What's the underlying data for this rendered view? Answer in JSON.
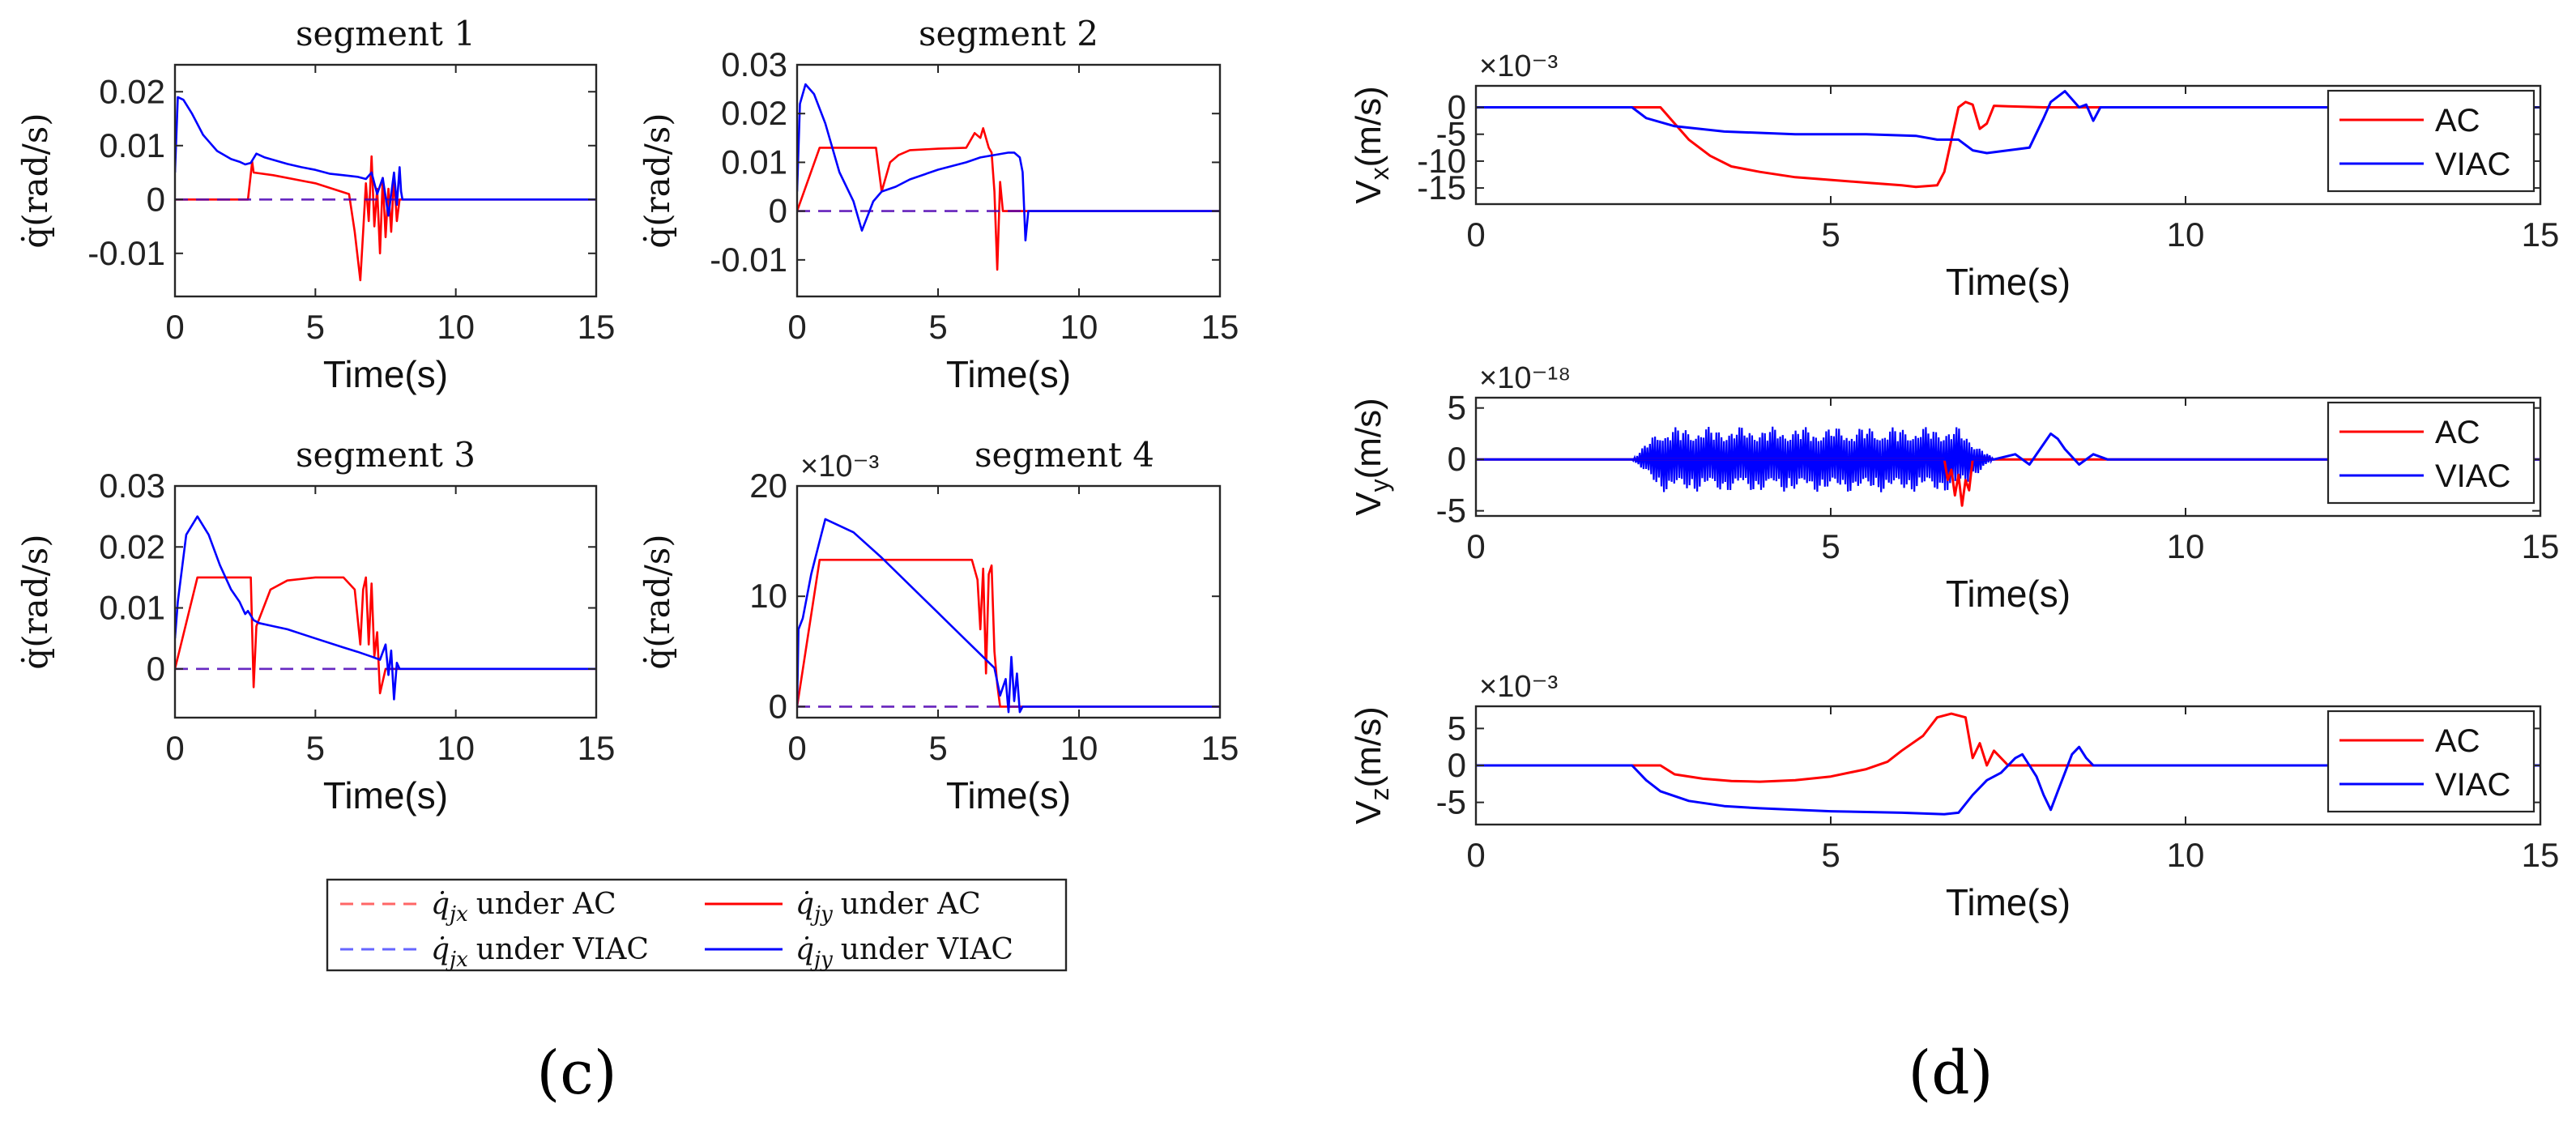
{
  "panel_labels": {
    "c": "(c)",
    "d": "(d)"
  },
  "legend_c": {
    "items": [
      {
        "name": "qjx-ac",
        "symbol": "q̇",
        "sub": "jx",
        "text": "under AC",
        "color": "#ff0000",
        "dash": true
      },
      {
        "name": "qjy-ac",
        "symbol": "q̇",
        "sub": "jy",
        "text": "under AC",
        "color": "#ff0000",
        "dash": false
      },
      {
        "name": "qjx-viac",
        "symbol": "q̇",
        "sub": "jx",
        "text": "under VIAC",
        "color": "#0000ff",
        "dash": true
      },
      {
        "name": "qjy-viac",
        "symbol": "q̇",
        "sub": "jy",
        "text": "under VIAC",
        "color": "#0000ff",
        "dash": false
      }
    ]
  },
  "colors": {
    "ac": "#ff0000",
    "viac": "#0000ff",
    "axis": "#262626"
  },
  "chart_data": [
    {
      "id": "seg1",
      "type": "line",
      "title": "segment 1",
      "xlabel": "Time(s)",
      "ylabel": "q̇(rad/s)",
      "exponent": "",
      "xlim": [
        0,
        15
      ],
      "ylim": [
        -0.018,
        0.025
      ],
      "xticks": [
        0,
        5,
        10,
        15
      ],
      "xticklabels": [
        "0",
        "5",
        "10",
        "15"
      ],
      "yticks": [
        -0.01,
        0,
        0.01,
        0.02
      ],
      "yticklabels": [
        "-0.01",
        "0",
        "0.01",
        "0.02"
      ],
      "series": [
        {
          "name": "q̇jx under AC",
          "color": "#ff0000",
          "dash": true,
          "x": [
            0,
            8.0
          ],
          "y": [
            0,
            0
          ]
        },
        {
          "name": "q̇jy under AC",
          "color": "#ff0000",
          "dash": false,
          "x": [
            0,
            2.6,
            2.75,
            2.8,
            3.5,
            5.0,
            6.2,
            6.4,
            6.6,
            6.7,
            6.8,
            6.9,
            7.0,
            7.1,
            7.2,
            7.3,
            7.4,
            7.5,
            7.6,
            7.7,
            7.8,
            7.9,
            8.0,
            15
          ],
          "y": [
            0,
            0,
            0.007,
            0.005,
            0.0045,
            0.003,
            0.001,
            -0.006,
            -0.015,
            -0.006,
            0.003,
            -0.004,
            0.008,
            -0.005,
            0.002,
            -0.01,
            0.004,
            -0.007,
            0.002,
            -0.006,
            0.004,
            -0.004,
            0,
            0
          ]
        },
        {
          "name": "q̇jx under VIAC",
          "color": "#0000ff",
          "dash": true,
          "x": [
            0,
            8.2
          ],
          "y": [
            0,
            0
          ]
        },
        {
          "name": "q̇jy under VIAC",
          "color": "#0000ff",
          "dash": false,
          "x": [
            0,
            0.1,
            0.3,
            0.6,
            1.0,
            1.5,
            2.0,
            2.3,
            2.5,
            2.7,
            2.9,
            3.2,
            3.6,
            4.0,
            4.5,
            5.0,
            5.5,
            6.0,
            6.5,
            6.8,
            7.0,
            7.2,
            7.4,
            7.6,
            7.8,
            7.9,
            8.0,
            8.05,
            8.1,
            15
          ],
          "y": [
            0.005,
            0.019,
            0.0185,
            0.016,
            0.012,
            0.009,
            0.0075,
            0.007,
            0.0065,
            0.0068,
            0.0085,
            0.0078,
            0.0072,
            0.0066,
            0.006,
            0.0055,
            0.0048,
            0.0045,
            0.0042,
            0.0038,
            0.005,
            0.001,
            0.004,
            -0.003,
            0.005,
            -0.001,
            0.006,
            0.0015,
            0,
            0
          ]
        }
      ]
    },
    {
      "id": "seg2",
      "type": "line",
      "title": "segment 2",
      "xlabel": "Time(s)",
      "ylabel": "q̇(rad/s)",
      "exponent": "",
      "xlim": [
        0,
        15
      ],
      "ylim": [
        -0.0175,
        0.03
      ],
      "xticks": [
        0,
        5,
        10,
        15
      ],
      "xticklabels": [
        "0",
        "5",
        "10",
        "15"
      ],
      "yticks": [
        -0.01,
        0,
        0.01,
        0.02,
        0.03
      ],
      "yticklabels": [
        "-0.01",
        "0",
        "0.01",
        "0.02",
        "0.03"
      ],
      "series": [
        {
          "name": "q̇jx under AC",
          "color": "#ff0000",
          "dash": true,
          "x": [
            0,
            8.0
          ],
          "y": [
            0,
            0
          ]
        },
        {
          "name": "q̇jy under AC",
          "color": "#ff0000",
          "dash": false,
          "x": [
            0,
            0.8,
            2.8,
            3.0,
            3.3,
            3.6,
            4.0,
            5.0,
            6.0,
            6.3,
            6.5,
            6.6,
            6.8,
            6.9,
            7.0,
            7.1,
            7.2,
            7.3,
            7.5,
            15
          ],
          "y": [
            0,
            0.013,
            0.013,
            0.004,
            0.01,
            0.0115,
            0.0125,
            0.0128,
            0.013,
            0.016,
            0.015,
            0.017,
            0.013,
            0.012,
            0.004,
            -0.012,
            0.006,
            0,
            0,
            0
          ]
        },
        {
          "name": "q̇jx under VIAC",
          "color": "#0000ff",
          "dash": true,
          "x": [
            0,
            8.2
          ],
          "y": [
            0,
            0
          ]
        },
        {
          "name": "q̇jy under VIAC",
          "color": "#0000ff",
          "dash": false,
          "x": [
            0,
            0.1,
            0.3,
            0.6,
            1.0,
            1.5,
            2.0,
            2.3,
            2.5,
            2.7,
            3.0,
            3.5,
            4.0,
            5.0,
            6.0,
            6.5,
            7.0,
            7.5,
            7.7,
            7.9,
            8.0,
            8.1,
            8.2,
            15
          ],
          "y": [
            0.004,
            0.022,
            0.026,
            0.024,
            0.018,
            0.008,
            0.002,
            -0.004,
            -0.001,
            0.002,
            0.004,
            0.005,
            0.0065,
            0.0085,
            0.01,
            0.011,
            0.0115,
            0.012,
            0.012,
            0.011,
            0.008,
            -0.006,
            0,
            0
          ]
        }
      ]
    },
    {
      "id": "seg3",
      "type": "line",
      "title": "segment 3",
      "xlabel": "Time(s)",
      "ylabel": "q̇(rad/s)",
      "exponent": "",
      "xlim": [
        0,
        15
      ],
      "ylim": [
        -0.008,
        0.03
      ],
      "xticks": [
        0,
        5,
        10,
        15
      ],
      "xticklabels": [
        "0",
        "5",
        "10",
        "15"
      ],
      "yticks": [
        0,
        0.01,
        0.02,
        0.03
      ],
      "yticklabels": [
        "0",
        "0.01",
        "0.02",
        "0.03"
      ],
      "series": [
        {
          "name": "q̇jx under AC",
          "color": "#ff0000",
          "dash": true,
          "x": [
            0,
            8.0
          ],
          "y": [
            0,
            0
          ]
        },
        {
          "name": "q̇jy under AC",
          "color": "#ff0000",
          "dash": false,
          "x": [
            0,
            0.8,
            2.7,
            2.8,
            2.9,
            3.4,
            4.0,
            5.0,
            6.0,
            6.4,
            6.6,
            6.7,
            6.8,
            6.9,
            7.0,
            7.1,
            7.2,
            7.3,
            7.5,
            15
          ],
          "y": [
            0,
            0.015,
            0.015,
            -0.003,
            0.007,
            0.013,
            0.0145,
            0.015,
            0.015,
            0.013,
            0.004,
            0.013,
            0.015,
            0.004,
            0.014,
            0.002,
            0.006,
            -0.004,
            0,
            0
          ]
        },
        {
          "name": "q̇jx under VIAC",
          "color": "#0000ff",
          "dash": true,
          "x": [
            0,
            8.2
          ],
          "y": [
            0,
            0
          ]
        },
        {
          "name": "q̇jy under VIAC",
          "color": "#0000ff",
          "dash": false,
          "x": [
            0,
            0.1,
            0.4,
            0.8,
            1.2,
            1.6,
            2.0,
            2.3,
            2.5,
            2.6,
            2.8,
            3.0,
            3.5,
            4.0,
            5.0,
            6.0,
            6.5,
            7.0,
            7.3,
            7.5,
            7.6,
            7.7,
            7.8,
            7.9,
            8.0,
            15
          ],
          "y": [
            0.005,
            0.011,
            0.022,
            0.025,
            0.022,
            0.017,
            0.013,
            0.011,
            0.009,
            0.0095,
            0.008,
            0.0075,
            0.007,
            0.0065,
            0.005,
            0.0035,
            0.0028,
            0.002,
            0.0015,
            0.004,
            -0.001,
            0.003,
            -0.005,
            0.001,
            0,
            0
          ]
        }
      ]
    },
    {
      "id": "seg4",
      "type": "line",
      "title": "segment 4",
      "xlabel": "Time(s)",
      "ylabel": "q̇(rad/s)",
      "exponent": "×10⁻³",
      "xlim": [
        0,
        15
      ],
      "ylim": [
        -1,
        20
      ],
      "xticks": [
        0,
        5,
        10,
        15
      ],
      "xticklabels": [
        "0",
        "5",
        "10",
        "15"
      ],
      "yticks": [
        0,
        10,
        20
      ],
      "yticklabels": [
        "0",
        "10",
        "20"
      ],
      "series": [
        {
          "name": "q̇jx under AC",
          "color": "#ff0000",
          "dash": true,
          "x": [
            0,
            8.0
          ],
          "y": [
            0,
            0
          ]
        },
        {
          "name": "q̇jy under AC",
          "color": "#ff0000",
          "dash": false,
          "x": [
            0,
            0.8,
            3.0,
            5.0,
            6.2,
            6.4,
            6.5,
            6.6,
            6.7,
            6.8,
            6.9,
            7.0,
            7.1,
            7.2,
            15
          ],
          "y": [
            0,
            13.3,
            13.3,
            13.3,
            13.3,
            11.5,
            7.0,
            12.5,
            3.0,
            12.0,
            12.8,
            5.0,
            2.0,
            0,
            0
          ]
        },
        {
          "name": "q̇jx under VIAC",
          "color": "#0000ff",
          "dash": true,
          "x": [
            0,
            8.2
          ],
          "y": [
            0,
            0
          ]
        },
        {
          "name": "q̇jy under VIAC",
          "color": "#0000ff",
          "dash": false,
          "x": [
            0,
            0.05,
            0.2,
            0.5,
            0.8,
            1.0,
            2.0,
            3.0,
            4.0,
            5.0,
            6.0,
            7.0,
            7.2,
            7.4,
            7.5,
            7.6,
            7.7,
            7.8,
            7.9,
            8.0,
            15
          ],
          "y": [
            0,
            7.0,
            8.0,
            12.0,
            15.0,
            17.0,
            15.8,
            13.5,
            11.0,
            8.5,
            6.0,
            3.5,
            1.0,
            2.5,
            -0.5,
            4.5,
            0.5,
            3.0,
            -0.5,
            0,
            0
          ]
        }
      ]
    },
    {
      "id": "vx",
      "type": "line",
      "title": "",
      "xlabel": "Time(s)",
      "ylabel": "Vx(m/s)",
      "ylabel_main": "V",
      "ylabel_sub": "x",
      "ylabel_unit": "(m/s)",
      "exponent": "×10⁻³",
      "xlim": [
        0,
        15
      ],
      "ylim": [
        -18,
        4
      ],
      "xticks": [
        0,
        5,
        10,
        15
      ],
      "xticklabels": [
        "0",
        "5",
        "10",
        "15"
      ],
      "yticks": [
        -15,
        -10,
        -5,
        0
      ],
      "yticklabels": [
        "-15",
        "-10",
        "-5",
        "0"
      ],
      "legend": [
        "AC",
        "VIAC"
      ],
      "series": [
        {
          "name": "AC",
          "color": "#ff0000",
          "x": [
            0,
            2.6,
            2.8,
            3.0,
            3.3,
            3.6,
            4.0,
            4.5,
            5.0,
            5.5,
            6.0,
            6.2,
            6.5,
            6.6,
            6.8,
            6.9,
            7.0,
            7.1,
            7.2,
            7.3,
            7.5,
            8.0,
            15
          ],
          "y": [
            0,
            0,
            -3,
            -6,
            -9,
            -11,
            -12,
            -13,
            -13.5,
            -14,
            -14.5,
            -14.8,
            -14.5,
            -12,
            0,
            1,
            0.5,
            -4,
            -3,
            0.3,
            0.2,
            0,
            0
          ]
        },
        {
          "name": "VIAC",
          "color": "#0000ff",
          "x": [
            0,
            2.2,
            2.4,
            2.8,
            3.5,
            4.5,
            5.5,
            6.2,
            6.5,
            6.8,
            7.0,
            7.2,
            7.5,
            7.8,
            8.0,
            8.1,
            8.3,
            8.5,
            8.6,
            8.7,
            8.8,
            9.0,
            15
          ],
          "y": [
            0,
            0,
            -2,
            -3.5,
            -4.5,
            -5,
            -5,
            -5.3,
            -6,
            -6,
            -8,
            -8.5,
            -8,
            -7.5,
            -2,
            1,
            3,
            0,
            0.5,
            -2.5,
            0,
            0,
            0
          ]
        }
      ]
    },
    {
      "id": "vy",
      "type": "line",
      "title": "",
      "xlabel": "Time(s)",
      "ylabel": "Vy(m/s)",
      "ylabel_main": "V",
      "ylabel_sub": "y",
      "ylabel_unit": "(m/s)",
      "exponent": "×10⁻¹⁸",
      "xlim": [
        0,
        15
      ],
      "ylim": [
        -5.5,
        6
      ],
      "xticks": [
        0,
        5,
        10,
        15
      ],
      "xticklabels": [
        "0",
        "5",
        "10",
        "15"
      ],
      "yticks": [
        -5,
        0,
        5
      ],
      "yticklabels": [
        "-5",
        "0",
        "5"
      ],
      "legend": [
        "AC",
        "VIAC"
      ],
      "noise": {
        "from": 2.2,
        "to": 7.3,
        "amp": 3.2
      },
      "series": [
        {
          "name": "AC",
          "color": "#ff0000",
          "x": [
            0,
            6.6,
            6.65,
            6.7,
            6.75,
            6.8,
            6.85,
            6.9,
            6.95,
            7.0,
            15
          ],
          "y": [
            0,
            0,
            -2,
            -1,
            -3.5,
            -1.5,
            -4.5,
            -2,
            -3,
            0,
            0
          ]
        },
        {
          "name": "VIAC",
          "color": "#0000ff",
          "x": [
            0,
            2.2,
            7.3,
            7.6,
            7.8,
            8.0,
            8.1,
            8.2,
            8.3,
            8.5,
            8.7,
            8.9,
            15
          ],
          "y": [
            0,
            0,
            0,
            0.5,
            -0.5,
            1.5,
            2.5,
            2.0,
            1.0,
            -0.5,
            0.5,
            0,
            0
          ]
        }
      ]
    },
    {
      "id": "vz",
      "type": "line",
      "title": "",
      "xlabel": "Time(s)",
      "ylabel": "Vz(m/s)",
      "ylabel_main": "V",
      "ylabel_sub": "z",
      "ylabel_unit": "(m/s)",
      "exponent": "×10⁻³",
      "xlim": [
        0,
        15
      ],
      "ylim": [
        -8,
        8
      ],
      "xticks": [
        0,
        5,
        10,
        15
      ],
      "xticklabels": [
        "0",
        "5",
        "10",
        "15"
      ],
      "yticks": [
        -5,
        0,
        5
      ],
      "yticklabels": [
        "-5",
        "0",
        "5"
      ],
      "legend": [
        "AC",
        "VIAC"
      ],
      "series": [
        {
          "name": "AC",
          "color": "#ff0000",
          "x": [
            0,
            2.6,
            2.8,
            3.2,
            3.6,
            4.0,
            4.5,
            5.0,
            5.5,
            5.8,
            6.0,
            6.3,
            6.5,
            6.7,
            6.9,
            7.0,
            7.1,
            7.2,
            7.3,
            7.5,
            8.0,
            15
          ],
          "y": [
            0,
            0,
            -1.2,
            -1.8,
            -2.1,
            -2.2,
            -2.0,
            -1.5,
            -0.5,
            0.5,
            2,
            4,
            6.5,
            7,
            6.5,
            1,
            3,
            0,
            2,
            0,
            0,
            0
          ]
        },
        {
          "name": "VIAC",
          "color": "#0000ff",
          "x": [
            0,
            2.2,
            2.4,
            2.6,
            3.0,
            3.5,
            4.0,
            5.0,
            6.0,
            6.6,
            6.8,
            7.0,
            7.2,
            7.4,
            7.6,
            7.7,
            7.8,
            7.9,
            8.0,
            8.1,
            8.2,
            8.3,
            8.4,
            8.5,
            8.6,
            8.7,
            9.0,
            15
          ],
          "y": [
            0,
            0,
            -2,
            -3.5,
            -4.8,
            -5.5,
            -5.8,
            -6.2,
            -6.4,
            -6.6,
            -6.4,
            -4,
            -2,
            -1,
            1,
            1.5,
            0,
            -1.5,
            -4,
            -6,
            -3.5,
            -1,
            1.5,
            2.5,
            1,
            0,
            0,
            0
          ]
        }
      ]
    }
  ]
}
